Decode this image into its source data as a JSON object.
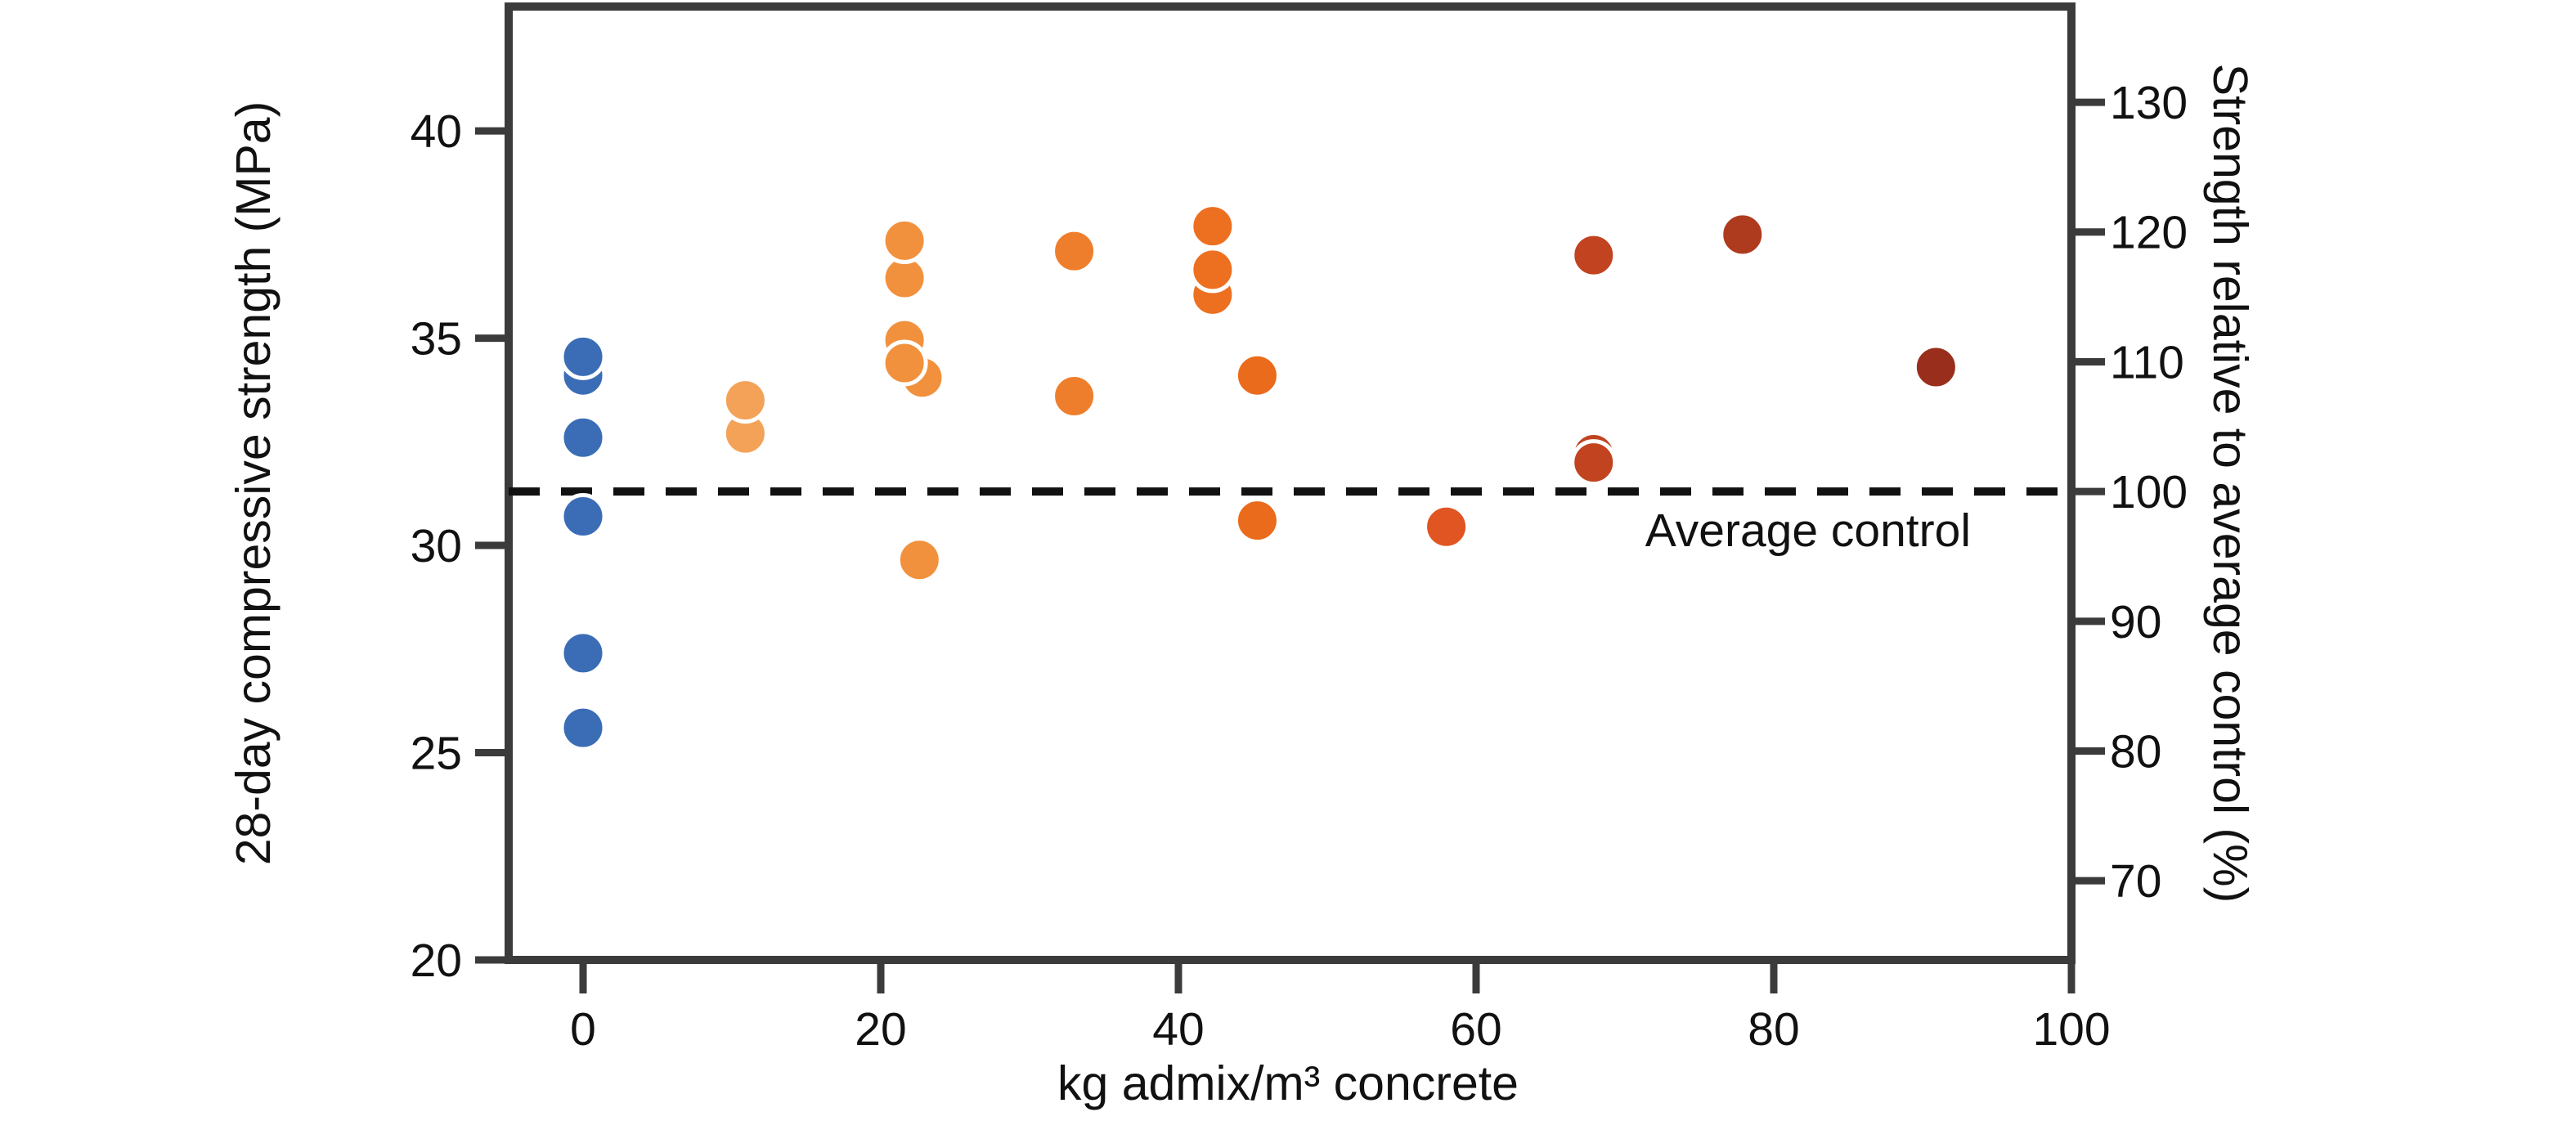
{
  "chart_data": {
    "type": "scatter",
    "title": "",
    "xlabel": "kg admix/m³ concrete",
    "ylabel_left": "28-day compressive strength (MPa)",
    "ylabel_right": "Strength relative to average control (%)",
    "xlim": [
      -5,
      100
    ],
    "ylim_left": [
      20,
      43
    ],
    "x_ticks": [
      0,
      20,
      40,
      60,
      80,
      100
    ],
    "y_ticks_left": [
      20,
      25,
      30,
      35,
      40
    ],
    "y_ticks_right": [
      70,
      80,
      90,
      100,
      110,
      120,
      130
    ],
    "grid": false,
    "legend": "none",
    "reference_line": {
      "label": "Average control",
      "value_mpa": 31.3,
      "value_percent": 100,
      "style": "dashed"
    },
    "points": [
      {
        "x": 0,
        "y_mpa": 34.1,
        "color": "#3A6DB5"
      },
      {
        "x": 0,
        "y_mpa": 34.55,
        "color": "#3A6DB5"
      },
      {
        "x": 0,
        "y_mpa": 32.6,
        "color": "#3A6DB5"
      },
      {
        "x": 0,
        "y_mpa": 30.7,
        "color": "#3A6DB5"
      },
      {
        "x": 0,
        "y_mpa": 27.4,
        "color": "#3A6DB5"
      },
      {
        "x": 0,
        "y_mpa": 25.6,
        "color": "#3A6DB5"
      },
      {
        "x": 10.9,
        "y_mpa": 32.7,
        "color": "#F4A258"
      },
      {
        "x": 10.9,
        "y_mpa": 33.5,
        "color": "#F4A258"
      },
      {
        "x": 21.6,
        "y_mpa": 36.45,
        "color": "#F2913D"
      },
      {
        "x": 21.6,
        "y_mpa": 37.35,
        "color": "#F2913D"
      },
      {
        "x": 21.6,
        "y_mpa": 34.95,
        "color": "#F2913D"
      },
      {
        "x": 22.8,
        "y_mpa": 34.05,
        "color": "#F2913D"
      },
      {
        "x": 21.6,
        "y_mpa": 34.4,
        "color": "#F2913D"
      },
      {
        "x": 22.6,
        "y_mpa": 29.65,
        "color": "#F2913D"
      },
      {
        "x": 33,
        "y_mpa": 37.1,
        "color": "#EF7E2C"
      },
      {
        "x": 33,
        "y_mpa": 33.6,
        "color": "#EF7E2C"
      },
      {
        "x": 42.3,
        "y_mpa": 37.7,
        "color": "#EC7020"
      },
      {
        "x": 42.3,
        "y_mpa": 36.05,
        "color": "#EC7020"
      },
      {
        "x": 42.3,
        "y_mpa": 36.65,
        "color": "#EC7020"
      },
      {
        "x": 45.3,
        "y_mpa": 34.1,
        "color": "#EB6B1D"
      },
      {
        "x": 45.3,
        "y_mpa": 30.6,
        "color": "#EB6B1D"
      },
      {
        "x": 58,
        "y_mpa": 30.45,
        "color": "#E05522"
      },
      {
        "x": 67.9,
        "y_mpa": 37.0,
        "color": "#C1431F"
      },
      {
        "x": 67.9,
        "y_mpa": 32.2,
        "color": "#C1431F"
      },
      {
        "x": 67.9,
        "y_mpa": 32.0,
        "color": "#C1431F"
      },
      {
        "x": 77.9,
        "y_mpa": 37.5,
        "color": "#AF3B1F"
      },
      {
        "x": 90.9,
        "y_mpa": 34.3,
        "color": "#9A2E1C"
      }
    ]
  },
  "colors": {
    "frame": "#3B3B3B",
    "text": "#111111",
    "reference_line": "#111111",
    "marker_stroke": "#FFFFFF",
    "background": "#FFFFFF"
  }
}
